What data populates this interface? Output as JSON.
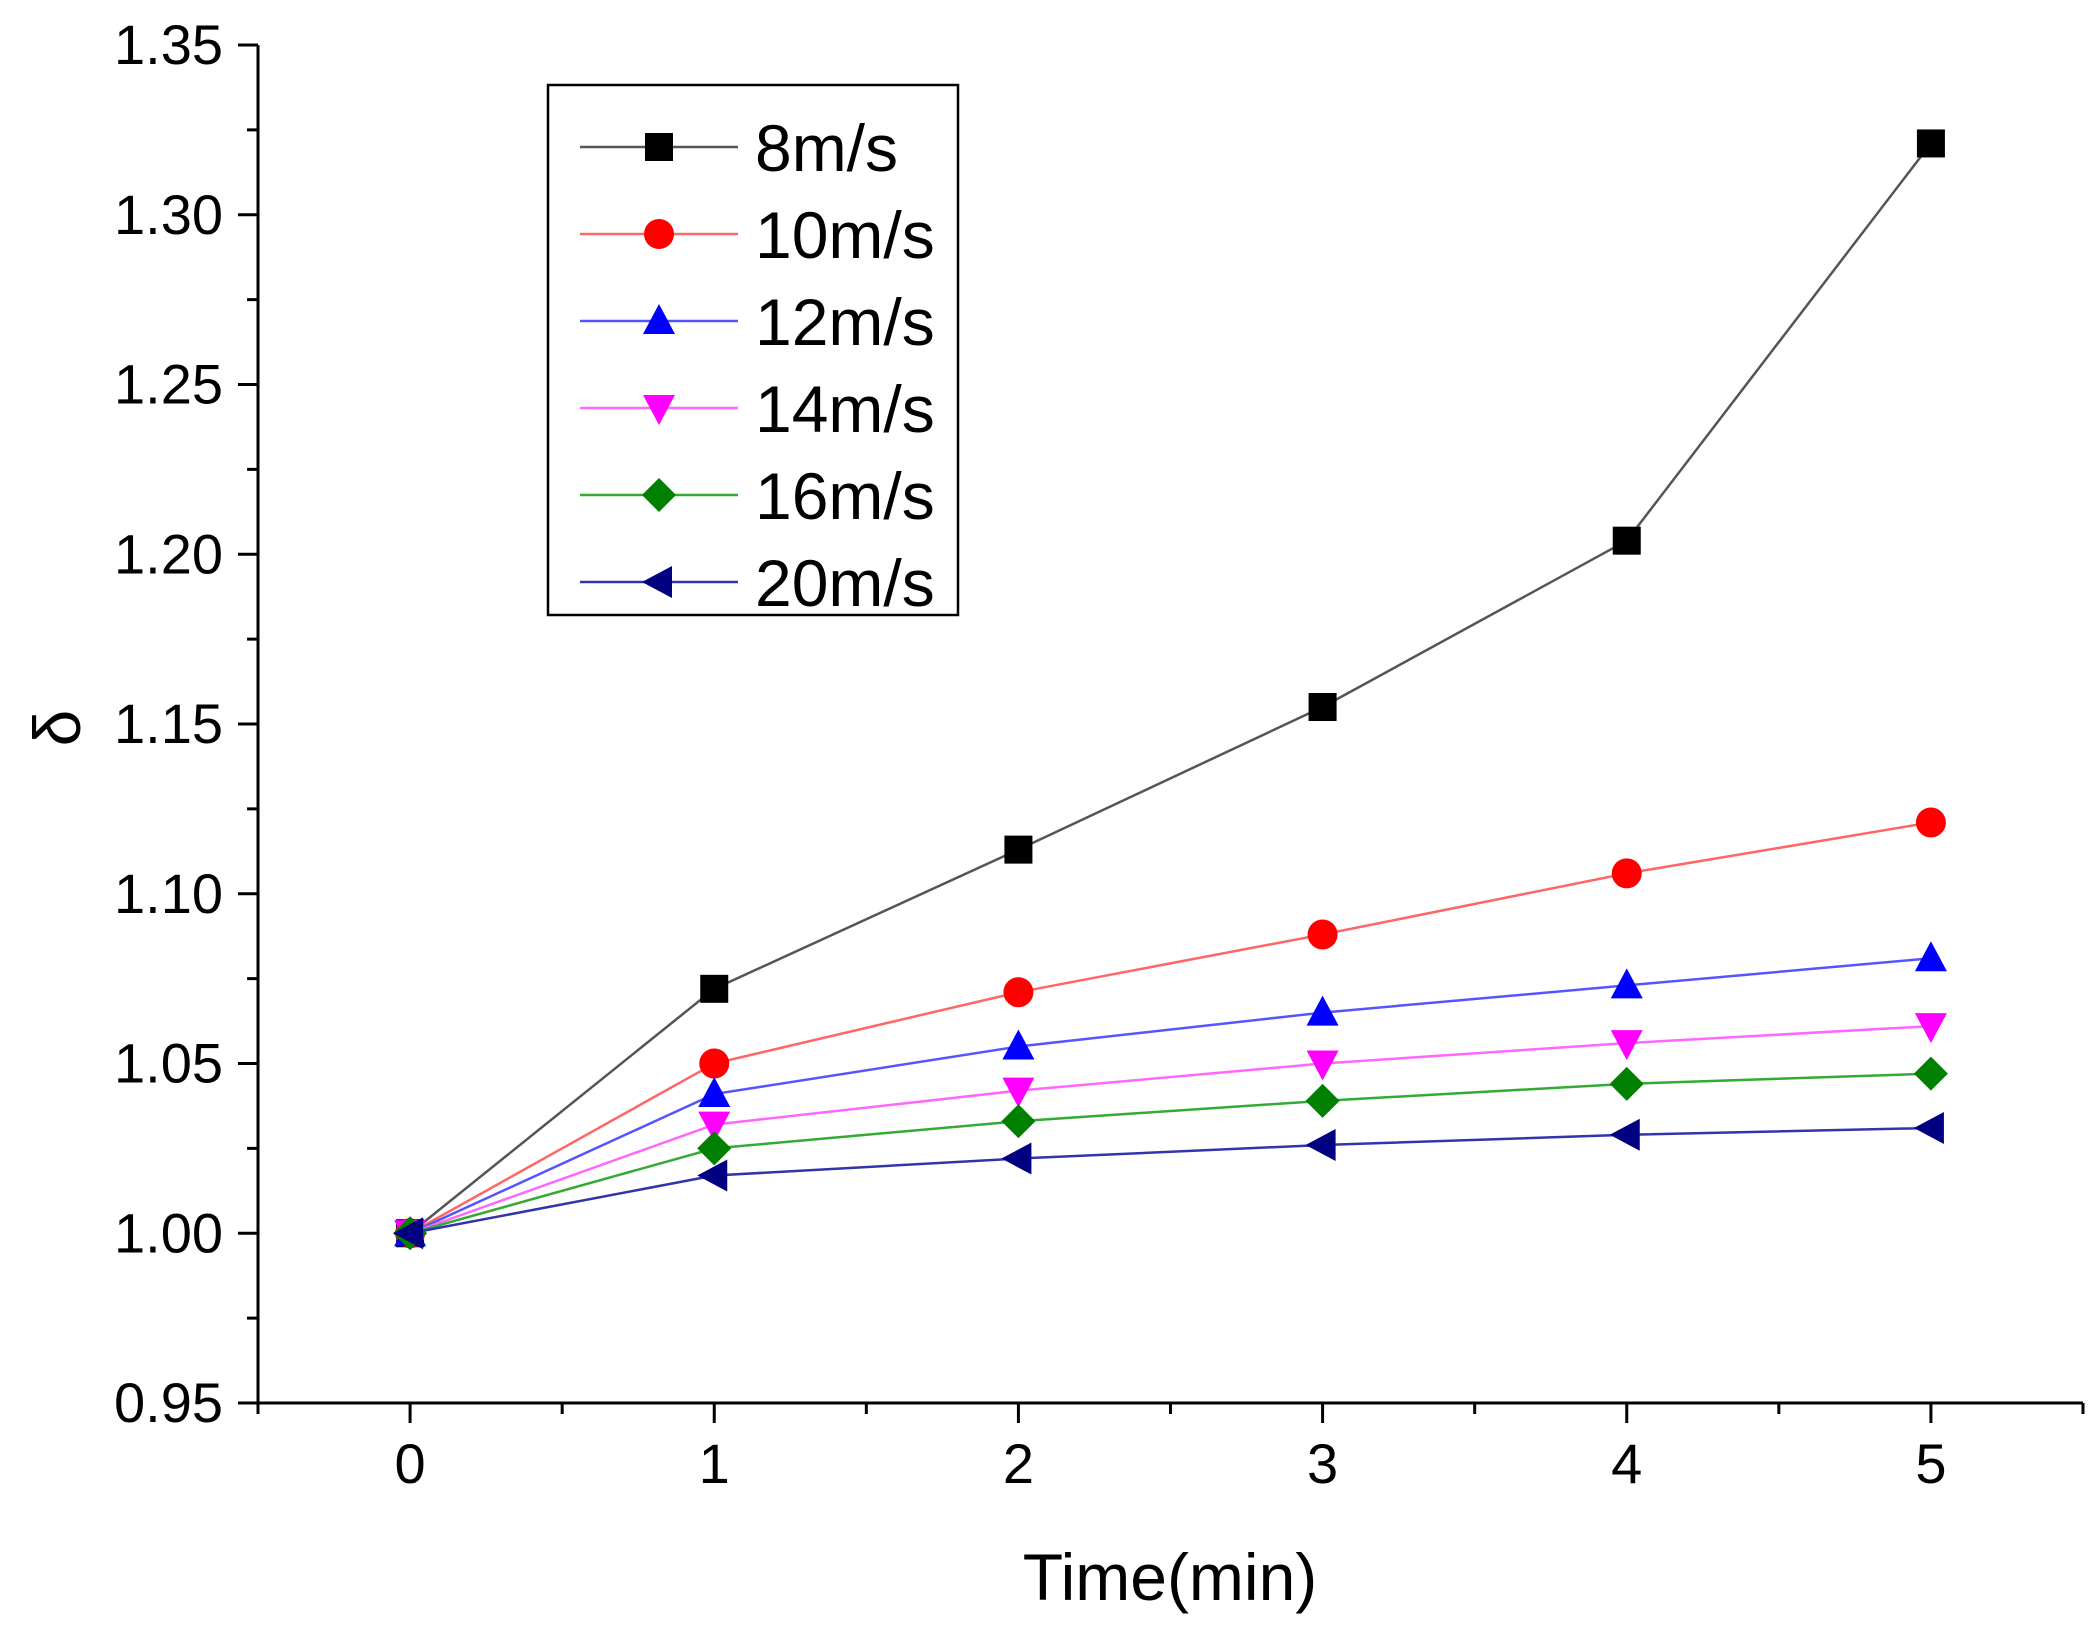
{
  "chart_data": {
    "type": "line",
    "title": "",
    "xlabel": "Time(min)",
    "ylabel": "δ",
    "xlim": [
      -0.5,
      5.5
    ],
    "ylim": [
      0.95,
      1.35
    ],
    "xticks": [
      0,
      1,
      2,
      3,
      4,
      5
    ],
    "xtick_labels": [
      "0",
      "1",
      "2",
      "3",
      "4",
      "5"
    ],
    "yticks": [
      0.95,
      1.0,
      1.05,
      1.1,
      1.15,
      1.2,
      1.25,
      1.3,
      1.35
    ],
    "ytick_labels": [
      "0.95",
      "1.00",
      "1.05",
      "1.10",
      "1.15",
      "1.20",
      "1.25",
      "1.30",
      "1.35"
    ],
    "grid": false,
    "legend_position": "top-left",
    "x": [
      0,
      1,
      2,
      3,
      4,
      5
    ],
    "series": [
      {
        "name": "8m/s",
        "values": [
          1.0,
          1.072,
          1.113,
          1.155,
          1.204,
          1.321
        ],
        "color": "#000000",
        "line_color": "#555555",
        "marker": "square"
      },
      {
        "name": "10m/s",
        "values": [
          1.0,
          1.05,
          1.071,
          1.088,
          1.106,
          1.121
        ],
        "color": "#ff0000",
        "line_color": "#ff6666",
        "marker": "circle"
      },
      {
        "name": "12m/s",
        "values": [
          1.0,
          1.041,
          1.055,
          1.065,
          1.073,
          1.081
        ],
        "color": "#0000ff",
        "line_color": "#5555ff",
        "marker": "triangle-up"
      },
      {
        "name": "14m/s",
        "values": [
          1.0,
          1.032,
          1.042,
          1.05,
          1.056,
          1.061
        ],
        "color": "#ff00ff",
        "line_color": "#ff66ff",
        "marker": "triangle-down"
      },
      {
        "name": "16m/s",
        "values": [
          1.0,
          1.025,
          1.033,
          1.039,
          1.044,
          1.047
        ],
        "color": "#008000",
        "line_color": "#33aa33",
        "marker": "diamond"
      },
      {
        "name": "20m/s",
        "values": [
          1.0,
          1.017,
          1.022,
          1.026,
          1.029,
          1.031
        ],
        "color": "#000080",
        "line_color": "#3333aa",
        "marker": "triangle-left"
      }
    ]
  }
}
